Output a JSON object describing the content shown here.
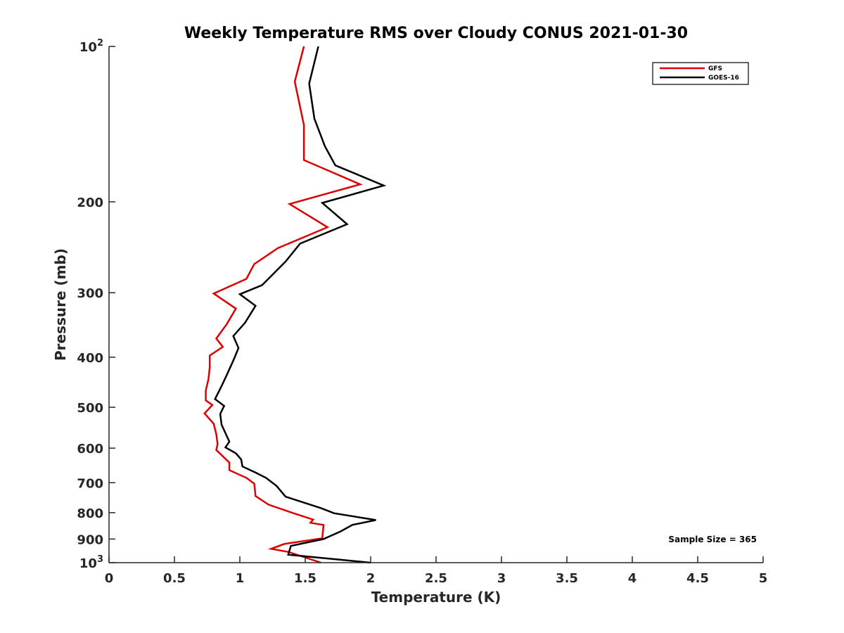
{
  "chart_data": {
    "type": "line",
    "title": "Weekly Temperature RMS over Cloudy CONUS 2021-01-30",
    "xlabel": "Temperature (K)",
    "ylabel": "Pressure (mb)",
    "xlim": [
      0,
      5
    ],
    "ylim": [
      100,
      1000
    ],
    "yscale": "log",
    "y_reversed": true,
    "x_ticks": [
      "0",
      "0.5",
      "1",
      "1.5",
      "2",
      "2.5",
      "3",
      "3.5",
      "4",
      "4.5",
      "5"
    ],
    "y_ticks": [
      {
        "value": 100,
        "label": "10",
        "sup": "2"
      },
      {
        "value": 200,
        "label": "200"
      },
      {
        "value": 300,
        "label": "300"
      },
      {
        "value": 400,
        "label": "400"
      },
      {
        "value": 500,
        "label": "500"
      },
      {
        "value": 600,
        "label": "600"
      },
      {
        "value": 700,
        "label": "700"
      },
      {
        "value": 800,
        "label": "800"
      },
      {
        "value": 900,
        "label": "900"
      },
      {
        "value": 1000,
        "label": "10",
        "sup": "3"
      }
    ],
    "grid": false,
    "legend_position": "top-right",
    "annotation": "Sample Size = 365",
    "series": [
      {
        "name": "GFS",
        "color": "#dd0000",
        "points": [
          [
            1.49,
            100
          ],
          [
            1.42,
            117
          ],
          [
            1.49,
            142
          ],
          [
            1.49,
            166
          ],
          [
            1.92,
            185
          ],
          [
            1.38,
            202
          ],
          [
            1.67,
            224
          ],
          [
            1.29,
            246
          ],
          [
            1.11,
            264
          ],
          [
            1.05,
            282
          ],
          [
            0.8,
            301
          ],
          [
            0.97,
            322
          ],
          [
            0.9,
            345
          ],
          [
            0.82,
            368
          ],
          [
            0.87,
            382
          ],
          [
            0.77,
            397
          ],
          [
            0.77,
            418
          ],
          [
            0.76,
            441
          ],
          [
            0.74,
            464
          ],
          [
            0.74,
            485
          ],
          [
            0.79,
            495
          ],
          [
            0.73,
            514
          ],
          [
            0.8,
            538
          ],
          [
            0.82,
            564
          ],
          [
            0.83,
            589
          ],
          [
            0.82,
            605
          ],
          [
            0.92,
            640
          ],
          [
            0.92,
            662
          ],
          [
            1.05,
            685
          ],
          [
            1.11,
            703
          ],
          [
            1.12,
            743
          ],
          [
            1.22,
            772
          ],
          [
            1.41,
            802
          ],
          [
            1.56,
            825
          ],
          [
            1.54,
            837
          ],
          [
            1.6,
            842
          ],
          [
            1.64,
            845
          ],
          [
            1.63,
            897
          ],
          [
            1.34,
            920
          ],
          [
            1.24,
            940
          ],
          [
            1.37,
            953
          ],
          [
            1.62,
            1000
          ]
        ]
      },
      {
        "name": "GOES-16",
        "color": "#000000",
        "points": [
          [
            1.6,
            100
          ],
          [
            1.53,
            118
          ],
          [
            1.57,
            138
          ],
          [
            1.65,
            156
          ],
          [
            1.73,
            170
          ],
          [
            2.1,
            186
          ],
          [
            1.63,
            201
          ],
          [
            1.82,
            221
          ],
          [
            1.46,
            241
          ],
          [
            1.35,
            261
          ],
          [
            1.17,
            290
          ],
          [
            1.0,
            302
          ],
          [
            1.12,
            318
          ],
          [
            1.04,
            343
          ],
          [
            0.95,
            364
          ],
          [
            0.99,
            384
          ],
          [
            0.95,
            406
          ],
          [
            0.9,
            433
          ],
          [
            0.86,
            455
          ],
          [
            0.81,
            482
          ],
          [
            0.88,
            497
          ],
          [
            0.85,
            515
          ],
          [
            0.86,
            540
          ],
          [
            0.92,
            583
          ],
          [
            0.89,
            598
          ],
          [
            0.97,
            614
          ],
          [
            1.01,
            631
          ],
          [
            1.02,
            651
          ],
          [
            1.12,
            669
          ],
          [
            1.2,
            685
          ],
          [
            1.28,
            710
          ],
          [
            1.35,
            745
          ],
          [
            1.62,
            784
          ],
          [
            1.72,
            802
          ],
          [
            2.04,
            827
          ],
          [
            1.86,
            845
          ],
          [
            1.77,
            870
          ],
          [
            1.64,
            900
          ],
          [
            1.39,
            928
          ],
          [
            1.37,
            965
          ],
          [
            2.0,
            1000
          ]
        ]
      }
    ]
  }
}
